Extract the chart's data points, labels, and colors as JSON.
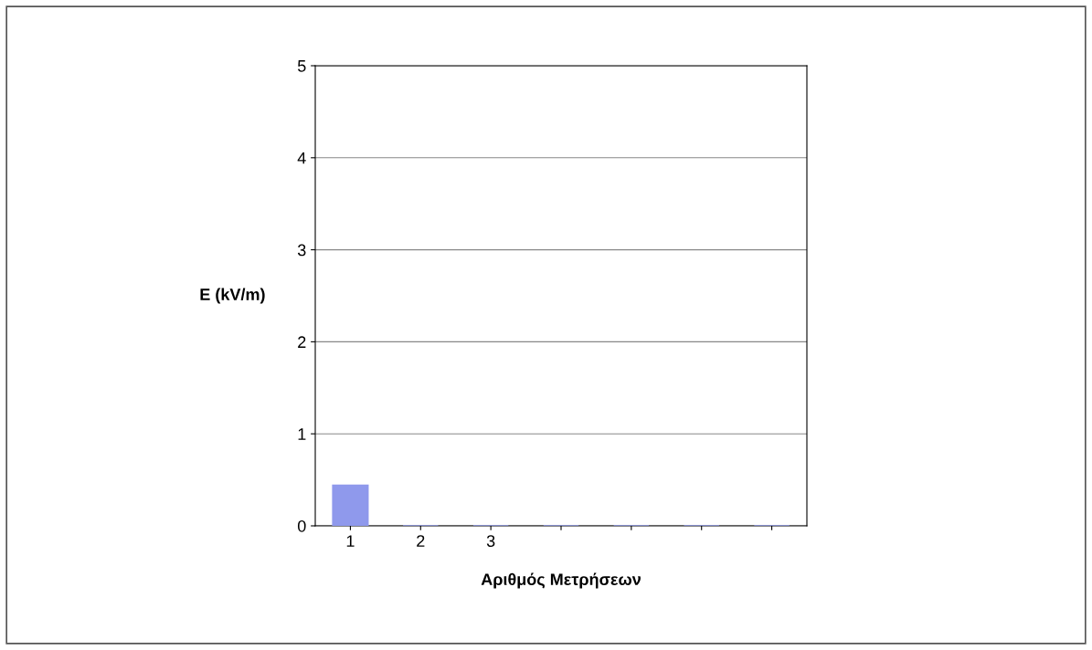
{
  "chart_data": {
    "type": "bar",
    "xlabel": "Αριθμός Μετρήσεων",
    "ylabel": "E (kV/m)",
    "categories": [
      "1",
      "2",
      "3",
      null,
      null,
      null,
      null
    ],
    "values": [
      0.44,
      0,
      0,
      0,
      0,
      0,
      0
    ],
    "color": "#8f99ec",
    "ylim": [
      0,
      5
    ],
    "yticks": [
      0,
      1,
      2,
      3,
      4,
      5
    ],
    "grid": "y",
    "legend": false
  }
}
